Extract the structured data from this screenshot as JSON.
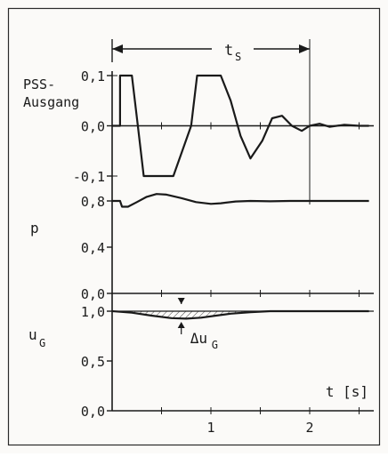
{
  "chart_data": [
    {
      "type": "line",
      "panel": "pss",
      "ylabel": [
        "PSS-",
        "Ausgang"
      ],
      "yticks": [
        {
          "value": 0.1,
          "label": "0,1"
        },
        {
          "value": 0.0,
          "label": "0,0"
        },
        {
          "value": -0.1,
          "label": "-0,1"
        }
      ],
      "ylim": [
        -0.1,
        0.1
      ],
      "xlim": [
        0,
        2.6
      ],
      "series": [
        {
          "x": [
            0,
            0.08,
            0.08,
            0.2,
            0.26,
            0.32,
            0.62,
            0.8,
            0.86,
            1.1,
            1.2,
            1.3,
            1.4,
            1.52,
            1.62,
            1.72,
            1.82,
            1.92,
            2.0,
            2.1,
            2.2,
            2.35,
            2.5,
            2.6
          ],
          "y": [
            0,
            0,
            0.1,
            0.1,
            0.0,
            -0.1,
            -0.1,
            0.0,
            0.1,
            0.1,
            0.05,
            -0.02,
            -0.065,
            -0.03,
            0.015,
            0.02,
            0.0,
            -0.01,
            0.0,
            0.004,
            -0.002,
            0.002,
            0.0,
            0.0
          ]
        }
      ],
      "annotation": {
        "label": "t",
        "sub": "S",
        "x_start": 0,
        "x_end": 2.0
      }
    },
    {
      "type": "line",
      "panel": "p",
      "ylabel": [
        "p"
      ],
      "yticks": [
        {
          "value": 0.8,
          "label": "0,8"
        },
        {
          "value": 0.4,
          "label": "0,4"
        },
        {
          "value": 0.0,
          "label": "0,0"
        }
      ],
      "ylim": [
        0,
        0.8
      ],
      "xlim": [
        0,
        2.6
      ],
      "series": [
        {
          "x": [
            0,
            0.08,
            0.1,
            0.16,
            0.25,
            0.35,
            0.45,
            0.55,
            0.7,
            0.85,
            1.0,
            1.1,
            1.25,
            1.4,
            1.6,
            1.8,
            2.0,
            2.3,
            2.6
          ],
          "y": [
            0.8,
            0.8,
            0.75,
            0.75,
            0.79,
            0.835,
            0.86,
            0.855,
            0.825,
            0.79,
            0.775,
            0.78,
            0.795,
            0.8,
            0.797,
            0.8,
            0.8,
            0.8,
            0.8
          ]
        }
      ]
    },
    {
      "type": "line",
      "panel": "uG",
      "ylabel": [
        "u",
        "G"
      ],
      "yticks": [
        {
          "value": 1.0,
          "label": "1,0"
        },
        {
          "value": 0.5,
          "label": "0,5"
        },
        {
          "value": 0.0,
          "label": "0,0"
        }
      ],
      "ylim": [
        0,
        1.0
      ],
      "xlim": [
        0,
        2.6
      ],
      "xticks": [
        {
          "value": 1,
          "label": "1"
        },
        {
          "value": 2,
          "label": "2"
        }
      ],
      "xlabel": "t [s]",
      "series": [
        {
          "x": [
            0,
            0.2,
            0.4,
            0.6,
            0.75,
            0.9,
            1.05,
            1.2,
            1.4,
            1.6,
            2.0,
            2.6
          ],
          "y": [
            1.0,
            0.985,
            0.955,
            0.93,
            0.925,
            0.935,
            0.955,
            0.975,
            0.99,
            1.0,
            1.0,
            1.0
          ]
        }
      ],
      "annotation": {
        "label": "Δu",
        "sub": "G",
        "x": 0.7
      }
    }
  ]
}
